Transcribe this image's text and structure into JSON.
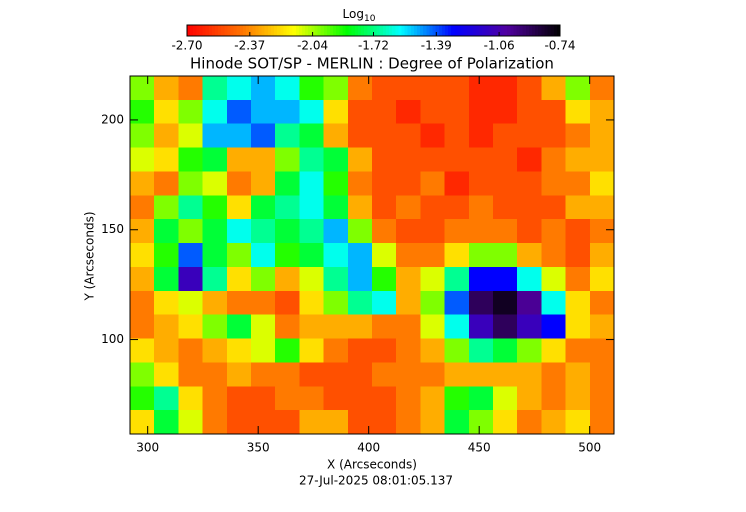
{
  "chart_data": {
    "type": "heatmap",
    "title": "Hinode SOT/SP - MERLIN : Degree of Polarization",
    "x_label": "X (Arcseconds)",
    "y_label": "Y (Arcseconds)",
    "footer": "27-Jul-2025 08:01:05.137",
    "colorbar_label": "Log",
    "colorbar_label_sub": "10",
    "xlim": [
      292,
      511
    ],
    "xticks": [
      300,
      350,
      400,
      450,
      500
    ],
    "ylim": [
      57,
      220
    ],
    "yticks": [
      100,
      150,
      200
    ],
    "zlim": [
      -2.7,
      -0.74
    ],
    "zticks": [
      {
        "value": -2.7,
        "label": "-2.70"
      },
      -2.37,
      -2.04,
      -1.72,
      -1.39,
      -1.06,
      -0.74
    ],
    "colormap": [
      "#ff0000",
      "#ff7000",
      "#ffff00",
      "#00ff00",
      "#00ffff",
      "#0000ff",
      "#5000a0",
      "#000000"
    ],
    "z": [
      [
        -2.0,
        -2.3,
        -2.4,
        -1.7,
        -1.6,
        -1.5,
        -1.6,
        -1.9,
        -2.0,
        -2.4,
        -2.5,
        -2.5,
        -2.5,
        -2.5,
        -2.6,
        -2.6,
        -2.5,
        -2.3,
        -2.0,
        -2.4
      ],
      [
        -1.9,
        -2.2,
        -2.0,
        -1.6,
        -1.4,
        -1.5,
        -1.5,
        -1.6,
        -2.2,
        -2.5,
        -2.5,
        -2.6,
        -2.5,
        -2.5,
        -2.6,
        -2.6,
        -2.5,
        -2.5,
        -2.2,
        -2.3
      ],
      [
        -2.0,
        -2.3,
        -2.1,
        -1.5,
        -1.5,
        -1.4,
        -1.7,
        -1.8,
        -2.3,
        -2.5,
        -2.5,
        -2.5,
        -2.6,
        -2.5,
        -2.6,
        -2.5,
        -2.5,
        -2.5,
        -2.4,
        -2.3
      ],
      [
        -2.1,
        -2.2,
        -1.9,
        -1.8,
        -2.3,
        -2.3,
        -2.0,
        -1.7,
        -1.8,
        -2.3,
        -2.5,
        -2.5,
        -2.5,
        -2.5,
        -2.5,
        -2.5,
        -2.6,
        -2.4,
        -2.3,
        -2.3
      ],
      [
        -2.3,
        -2.4,
        -2.0,
        -2.1,
        -2.4,
        -2.3,
        -1.8,
        -1.6,
        -1.9,
        -2.4,
        -2.5,
        -2.5,
        -2.4,
        -2.6,
        -2.5,
        -2.5,
        -2.5,
        -2.4,
        -2.4,
        -2.2
      ],
      [
        -2.4,
        -2.0,
        -1.7,
        -1.9,
        -2.2,
        -1.8,
        -1.7,
        -1.6,
        -1.8,
        -2.3,
        -2.5,
        -2.4,
        -2.5,
        -2.5,
        -2.4,
        -2.5,
        -2.5,
        -2.5,
        -2.3,
        -2.3
      ],
      [
        -2.3,
        -1.8,
        -2.0,
        -1.8,
        -1.6,
        -1.7,
        -1.8,
        -1.7,
        -1.5,
        -2.0,
        -2.4,
        -2.5,
        -2.5,
        -2.4,
        -2.4,
        -2.4,
        -2.5,
        -2.4,
        -2.5,
        -2.4
      ],
      [
        -2.2,
        -1.9,
        -1.4,
        -1.8,
        -2.0,
        -1.6,
        -1.9,
        -1.8,
        -1.6,
        -1.5,
        -2.1,
        -2.4,
        -2.4,
        -2.2,
        -2.0,
        -2.0,
        -2.3,
        -2.4,
        -2.5,
        -2.3
      ],
      [
        -2.3,
        -1.8,
        -1.1,
        -1.7,
        -2.2,
        -2.0,
        -2.3,
        -2.1,
        -1.7,
        -1.5,
        -1.9,
        -2.3,
        -2.1,
        -1.7,
        -1.3,
        -1.3,
        -1.6,
        -2.1,
        -2.4,
        -2.2
      ],
      [
        -2.4,
        -2.2,
        -2.1,
        -2.3,
        -2.4,
        -2.4,
        -2.5,
        -2.2,
        -2.0,
        -1.7,
        -1.6,
        -2.3,
        -2.0,
        -1.4,
        -0.9,
        -0.8,
        -1.0,
        -1.6,
        -2.2,
        -2.4
      ],
      [
        -2.4,
        -2.3,
        -2.2,
        -2.0,
        -1.8,
        -2.1,
        -2.4,
        -2.3,
        -2.3,
        -2.3,
        -2.4,
        -2.4,
        -2.1,
        -1.6,
        -1.1,
        -0.9,
        -1.1,
        -1.3,
        -2.2,
        -2.3
      ],
      [
        -2.2,
        -2.3,
        -2.4,
        -2.3,
        -2.2,
        -2.1,
        -1.9,
        -2.2,
        -2.4,
        -2.5,
        -2.5,
        -2.4,
        -2.3,
        -2.0,
        -1.7,
        -1.8,
        -2.0,
        -2.2,
        -2.4,
        -2.4
      ],
      [
        -2.0,
        -2.2,
        -2.4,
        -2.4,
        -2.3,
        -2.4,
        -2.4,
        -2.5,
        -2.5,
        -2.5,
        -2.4,
        -2.4,
        -2.4,
        -2.3,
        -2.3,
        -2.3,
        -2.3,
        -2.4,
        -2.3,
        -2.4
      ],
      [
        -1.9,
        -1.7,
        -2.2,
        -2.4,
        -2.5,
        -2.5,
        -2.4,
        -2.4,
        -2.5,
        -2.5,
        -2.5,
        -2.4,
        -2.3,
        -1.9,
        -1.8,
        -2.1,
        -2.3,
        -2.4,
        -2.3,
        -2.4
      ],
      [
        -2.2,
        -1.8,
        -2.1,
        -2.4,
        -2.5,
        -2.5,
        -2.5,
        -2.3,
        -2.3,
        -2.5,
        -2.5,
        -2.4,
        -2.3,
        -1.8,
        -2.0,
        -2.2,
        -2.4,
        -2.3,
        -2.2,
        -2.4
      ]
    ]
  }
}
